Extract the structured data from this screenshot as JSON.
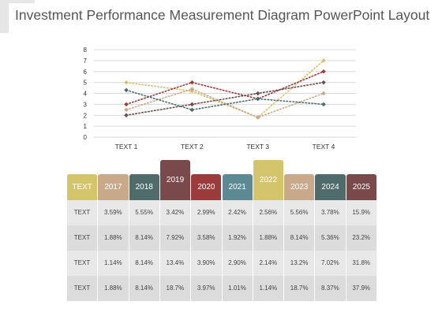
{
  "title": "Investment Performance Measurement Diagram PowerPoint Layout",
  "colors": {
    "background": "#ffffff",
    "grid": "#d9d9d9",
    "row_even": "#e8e8e8",
    "row_odd": "#dcdcdc"
  },
  "chart_data": {
    "type": "line",
    "categories": [
      "TEXT 1",
      "TEXT 2",
      "TEXT 3",
      "TEXT 4"
    ],
    "ylim": [
      0,
      8
    ],
    "yticks": [
      "0",
      "1",
      "2",
      "3",
      "4",
      "5",
      "6",
      "7",
      "8"
    ],
    "grid": true,
    "line_style": "dotted",
    "marker": "diamond",
    "series": [
      {
        "color": "#d4c46a",
        "values": [
          5.0,
          4.2,
          1.8,
          7.0
        ]
      },
      {
        "color": "#9b3b3b",
        "values": [
          3.0,
          5.0,
          3.5,
          6.0
        ]
      },
      {
        "color": "#6b4a4a",
        "values": [
          2.0,
          3.0,
          4.0,
          5.0
        ]
      },
      {
        "color": "#c8a98a",
        "values": [
          2.5,
          4.4,
          1.8,
          4.0
        ]
      },
      {
        "color": "#4f6b6b",
        "values": [
          4.3,
          2.5,
          3.5,
          3.0
        ]
      }
    ]
  },
  "table": {
    "headers": [
      {
        "label": "TEXT",
        "color": "#d4c46a"
      },
      {
        "label": "2017",
        "color": "#c8a98a"
      },
      {
        "label": "2018",
        "color": "#4f6b6b"
      },
      {
        "label": "2019",
        "color": "#7a4a4a",
        "raised": true
      },
      {
        "label": "2020",
        "color": "#9b3b3b"
      },
      {
        "label": "2021",
        "color": "#5b8a94"
      },
      {
        "label": "2022",
        "color": "#d4c46a",
        "raised": true
      },
      {
        "label": "2023",
        "color": "#c8a98a"
      },
      {
        "label": "2024",
        "color": "#4f6b6b"
      },
      {
        "label": "2025",
        "color": "#7a4a4a"
      }
    ],
    "rows": [
      [
        "TEXT",
        "3.59%",
        "5.55%",
        "3.42%",
        "2.99%",
        "2.42%",
        "2.56%",
        "5.56%",
        "3.78%",
        "15.9%"
      ],
      [
        "TEXT",
        "1.88%",
        "8.14%",
        "7.92%",
        "3.58%",
        "1.92%",
        "1.88%",
        "8.14%",
        "5.36%",
        "23.2%"
      ],
      [
        "TEXT",
        "1.14%",
        "8.14%",
        "13.4%",
        "3.90%",
        "2.90%",
        "2.14%",
        "13.2%",
        "7.02%",
        "31.8%"
      ],
      [
        "TEXT",
        "1.88%",
        "8.14%",
        "18.7%",
        "3.97%",
        "1.01%",
        "1.14%",
        "18.7%",
        "8.37%",
        "37.9%"
      ]
    ]
  }
}
